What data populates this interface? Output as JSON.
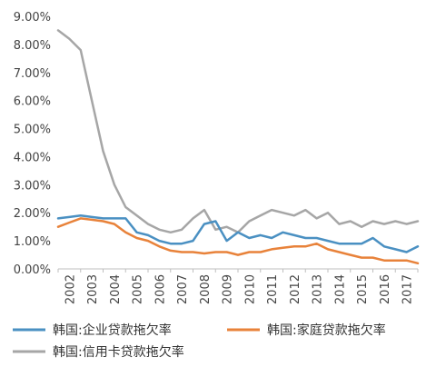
{
  "chart_data": {
    "type": "line",
    "title": "",
    "xlabel": "",
    "ylabel": "",
    "x_tick_labels": [
      "2002",
      "2003",
      "2004",
      "2005",
      "2006",
      "2007",
      "2008",
      "2009",
      "2010",
      "2011",
      "2012",
      "2013",
      "2014",
      "2015",
      "2016",
      "2017"
    ],
    "y_tick_labels": [
      "0.00%",
      "1.00%",
      "2.00%",
      "3.00%",
      "4.00%",
      "5.00%",
      "6.00%",
      "7.00%",
      "8.00%",
      "9.00%"
    ],
    "ylim": [
      0,
      9
    ],
    "grid": false,
    "legend_position": "bottom",
    "x": [
      2002.0,
      2002.5,
      2003.0,
      2003.5,
      2004.0,
      2004.5,
      2005.0,
      2005.5,
      2006.0,
      2006.5,
      2007.0,
      2007.5,
      2008.0,
      2008.5,
      2009.0,
      2009.5,
      2010.0,
      2010.5,
      2011.0,
      2011.5,
      2012.0,
      2012.5,
      2013.0,
      2013.5,
      2014.0,
      2014.5,
      2015.0,
      2015.5,
      2016.0,
      2016.5,
      2017.0,
      2017.5,
      2018.0
    ],
    "series": [
      {
        "name": "韩国:企业贷款拖欠率",
        "color": "#4a90c2",
        "values": [
          1.8,
          1.85,
          1.9,
          1.85,
          1.8,
          1.8,
          1.8,
          1.3,
          1.2,
          1.0,
          0.9,
          0.9,
          1.0,
          1.6,
          1.7,
          1.0,
          1.3,
          1.1,
          1.2,
          1.1,
          1.3,
          1.2,
          1.1,
          1.1,
          1.0,
          0.9,
          0.9,
          0.9,
          1.1,
          0.8,
          0.7,
          0.6,
          0.8
        ]
      },
      {
        "name": "韩国:家庭贷款拖欠率",
        "color": "#e8823a",
        "values": [
          1.5,
          1.65,
          1.8,
          1.75,
          1.7,
          1.6,
          1.3,
          1.1,
          1.0,
          0.8,
          0.65,
          0.6,
          0.6,
          0.55,
          0.6,
          0.6,
          0.5,
          0.6,
          0.6,
          0.7,
          0.75,
          0.8,
          0.8,
          0.9,
          0.7,
          0.6,
          0.5,
          0.4,
          0.4,
          0.3,
          0.3,
          0.3,
          0.2
        ]
      },
      {
        "name": "韩国:信用卡贷款拖欠率",
        "color": "#a6a6a6",
        "values": [
          8.5,
          8.2,
          7.8,
          6.0,
          4.2,
          3.0,
          2.2,
          1.9,
          1.6,
          1.4,
          1.3,
          1.4,
          1.8,
          2.1,
          1.4,
          1.5,
          1.3,
          1.7,
          1.9,
          2.1,
          2.0,
          1.9,
          2.1,
          1.8,
          2.0,
          1.6,
          1.7,
          1.5,
          1.7,
          1.6,
          1.7,
          1.6,
          1.7
        ]
      }
    ]
  }
}
